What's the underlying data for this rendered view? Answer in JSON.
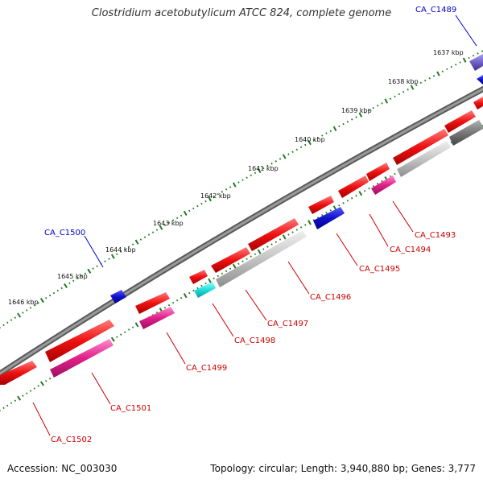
{
  "title": "Clostridium acetobutylicum ATCC 824, complete genome",
  "footer": {
    "accession": "Accession: NC_003030",
    "summary": "Topology: circular; Length: 3,940,880 bp; Genes: 3,777"
  },
  "colors": {
    "backbone": "#808080",
    "tick_mark": "#1f7a1f",
    "forward_label": "#0000cc",
    "reverse_label": "#cc0000",
    "red": "#ee1111",
    "pink": "#e0208a",
    "blue": "#1111cc",
    "cyan": "#22dddd",
    "light_gray": "#c4c4c4",
    "dark_gray": "#777777",
    "purple": "#7060c8"
  },
  "scale_labels": [
    "1637 kbp",
    "1638 kbp",
    "1639 kbp",
    "1640 kbp",
    "1641 kbp",
    "1642 kbp",
    "1643 kbp",
    "1644 kbp",
    "1645 kbp",
    "1646 kbp"
  ],
  "gene_labels": {
    "forward": [
      "CA_C1489",
      "CA_C1500"
    ],
    "reverse": [
      "CA_C1493",
      "CA_C1494",
      "CA_C1495",
      "CA_C1496",
      "CA_C1497",
      "CA_C1498",
      "CA_C1499",
      "CA_C1501",
      "CA_C1502"
    ]
  }
}
